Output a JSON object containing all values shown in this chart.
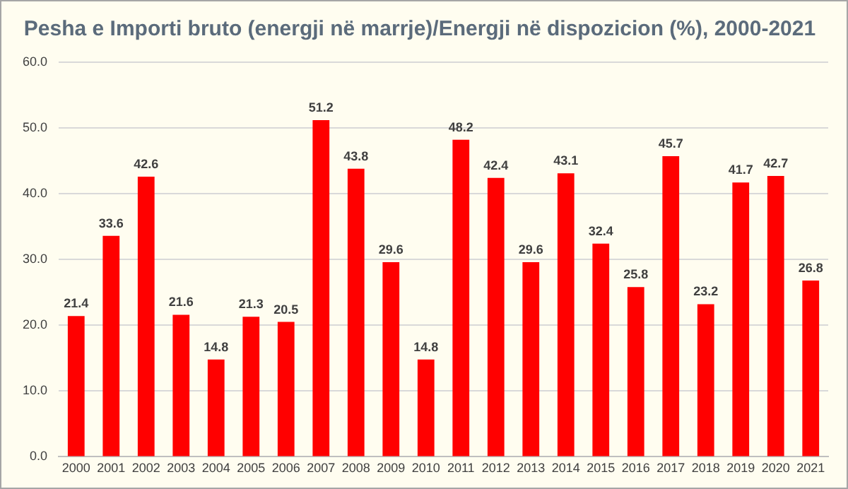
{
  "chart_data": {
    "type": "bar",
    "title": "Pesha e Importi bruto (energji në marrje)/Energji në dispozicion (%), 2000-2021",
    "categories": [
      "2000",
      "2001",
      "2002",
      "2003",
      "2004",
      "2005",
      "2006",
      "2007",
      "2008",
      "2009",
      "2010",
      "2011",
      "2012",
      "2013",
      "2014",
      "2015",
      "2016",
      "2017",
      "2018",
      "2019",
      "2020",
      "2021"
    ],
    "values": [
      21.4,
      33.6,
      42.6,
      21.6,
      14.8,
      21.3,
      20.5,
      51.2,
      43.8,
      29.6,
      14.8,
      48.2,
      42.4,
      29.6,
      43.1,
      32.4,
      25.8,
      45.7,
      23.2,
      41.7,
      42.7,
      26.8
    ],
    "color": "#ff0000",
    "ylim": [
      0,
      60
    ],
    "yticks": [
      {
        "value": 0,
        "label": "0.0"
      },
      {
        "value": 10,
        "label": "10.0"
      },
      {
        "value": 20,
        "label": "20.0"
      },
      {
        "value": 30,
        "label": "30.0"
      },
      {
        "value": 40,
        "label": "40.0"
      },
      {
        "value": 50,
        "label": "50.0"
      },
      {
        "value": 60,
        "label": "60.0"
      }
    ],
    "grid": "y",
    "data_labels": true,
    "legend": false
  }
}
